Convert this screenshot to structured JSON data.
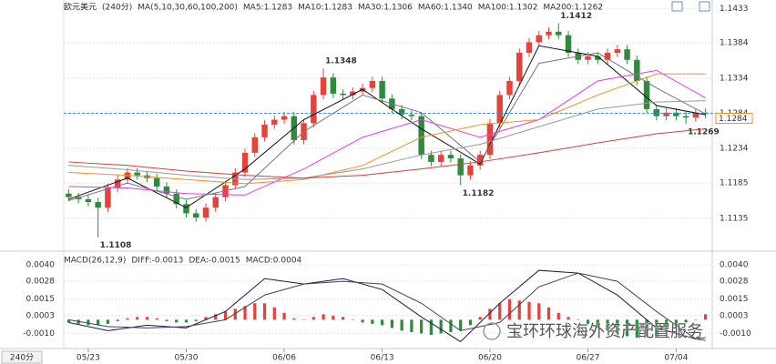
{
  "chart_data": [
    {
      "type": "candlestick",
      "title": "欧元美元",
      "subtitle": "(240分)",
      "indicator": "MA(5,10,30,60,100,200)",
      "xlim": [
        -0.5,
        65.5
      ],
      "ylim": [
        1.1096,
        1.1445
      ],
      "yticks": [
        1.1433,
        1.1384,
        1.1334,
        1.1284,
        1.1234,
        1.1185,
        1.1135
      ],
      "grid": true,
      "up_color": "#e8413a",
      "down_color": "#2e8b3d",
      "open": [
        1.117,
        1.1165,
        1.1162,
        1.1158,
        1.115,
        1.1178,
        1.119,
        1.12,
        1.1196,
        1.1192,
        1.118,
        1.117,
        1.1155,
        1.1142,
        1.1136,
        1.115,
        1.1165,
        1.1182,
        1.12,
        1.1228,
        1.125,
        1.1268,
        1.1275,
        1.128,
        1.1246,
        1.127,
        1.131,
        1.1335,
        1.1312,
        1.131,
        1.1315,
        1.132,
        1.133,
        1.1305,
        1.129,
        1.1282,
        1.128,
        1.1225,
        1.1215,
        1.1225,
        1.122,
        1.1196,
        1.121,
        1.1225,
        1.127,
        1.131,
        1.133,
        1.137,
        1.1385,
        1.1395,
        1.14,
        1.1395,
        1.137,
        1.136,
        1.1365,
        1.136,
        1.137,
        1.1375,
        1.136,
        1.133,
        1.129,
        1.128,
        1.1285,
        1.128,
        1.1278,
        1.1285
      ],
      "high": [
        1.1176,
        1.1171,
        1.1168,
        1.1164,
        1.1184,
        1.1196,
        1.1206,
        1.1206,
        1.1202,
        1.1198,
        1.1186,
        1.1176,
        1.1161,
        1.1148,
        1.1156,
        1.1171,
        1.1188,
        1.1206,
        1.1234,
        1.1256,
        1.1274,
        1.1281,
        1.1286,
        1.1286,
        1.1276,
        1.1316,
        1.1348,
        1.1341,
        1.1318,
        1.1321,
        1.1326,
        1.1336,
        1.1336,
        1.1311,
        1.1296,
        1.1288,
        1.1286,
        1.1231,
        1.1231,
        1.1231,
        1.1226,
        1.1216,
        1.1231,
        1.1276,
        1.1316,
        1.1336,
        1.1376,
        1.1391,
        1.1401,
        1.1406,
        1.1412,
        1.1401,
        1.1376,
        1.1371,
        1.1371,
        1.1376,
        1.1381,
        1.1381,
        1.1366,
        1.1336,
        1.1296,
        1.1291,
        1.1291,
        1.1286,
        1.1291,
        1.1291
      ],
      "low": [
        1.1159,
        1.1156,
        1.1152,
        1.1108,
        1.1144,
        1.1172,
        1.1184,
        1.119,
        1.1186,
        1.1174,
        1.1164,
        1.1149,
        1.1136,
        1.113,
        1.113,
        1.1144,
        1.1159,
        1.1176,
        1.1194,
        1.1222,
        1.1244,
        1.1262,
        1.1269,
        1.124,
        1.124,
        1.1264,
        1.1304,
        1.1306,
        1.1304,
        1.1304,
        1.1309,
        1.1314,
        1.1299,
        1.1284,
        1.1276,
        1.1274,
        1.1219,
        1.1209,
        1.1209,
        1.1214,
        1.1182,
        1.119,
        1.1204,
        1.1219,
        1.1264,
        1.1304,
        1.1324,
        1.1364,
        1.1379,
        1.1389,
        1.1389,
        1.1364,
        1.1354,
        1.1354,
        1.1354,
        1.1354,
        1.1364,
        1.1354,
        1.1324,
        1.1284,
        1.1274,
        1.1274,
        1.1274,
        1.1269,
        1.1272,
        1.1277
      ],
      "close": [
        1.1165,
        1.1162,
        1.1158,
        1.115,
        1.1178,
        1.119,
        1.12,
        1.1196,
        1.1192,
        1.118,
        1.117,
        1.1155,
        1.1142,
        1.1136,
        1.115,
        1.1165,
        1.1182,
        1.12,
        1.1228,
        1.125,
        1.1268,
        1.1275,
        1.128,
        1.1246,
        1.127,
        1.131,
        1.1335,
        1.1312,
        1.131,
        1.1315,
        1.132,
        1.133,
        1.1305,
        1.129,
        1.1282,
        1.128,
        1.1225,
        1.1215,
        1.1225,
        1.122,
        1.1196,
        1.121,
        1.1225,
        1.127,
        1.131,
        1.133,
        1.137,
        1.1385,
        1.1395,
        1.14,
        1.1395,
        1.137,
        1.136,
        1.1365,
        1.136,
        1.137,
        1.1375,
        1.136,
        1.133,
        1.129,
        1.128,
        1.1285,
        1.128,
        1.1278,
        1.1285,
        1.1283
      ],
      "series": [
        {
          "name": "MA5:1.1283",
          "color": "#111111",
          "x": [
            0,
            6,
            12,
            18,
            24,
            30,
            36,
            42,
            48,
            54,
            60,
            65
          ],
          "values": [
            1.1162,
            1.1192,
            1.115,
            1.1205,
            1.1275,
            1.1318,
            1.1262,
            1.1212,
            1.138,
            1.1365,
            1.1295,
            1.1282
          ]
        },
        {
          "name": "MA10:1.1283",
          "color": "#777777",
          "x": [
            0,
            6,
            12,
            18,
            24,
            30,
            36,
            42,
            48,
            54,
            60,
            65
          ],
          "values": [
            1.116,
            1.1185,
            1.1162,
            1.118,
            1.1258,
            1.131,
            1.1285,
            1.1215,
            1.1355,
            1.137,
            1.132,
            1.1283
          ]
        },
        {
          "name": "MA30:1.1306",
          "color": "#e040e0",
          "x": [
            0,
            6,
            12,
            18,
            24,
            30,
            36,
            42,
            48,
            54,
            60,
            65
          ],
          "values": [
            1.118,
            1.1178,
            1.117,
            1.1168,
            1.1205,
            1.125,
            1.1275,
            1.125,
            1.1275,
            1.133,
            1.1345,
            1.1306
          ]
        },
        {
          "name": "MA60:1.1340",
          "color": "#f0902a",
          "x": [
            0,
            6,
            12,
            18,
            24,
            30,
            36,
            42,
            48,
            54,
            60,
            65
          ],
          "values": [
            1.12,
            1.1196,
            1.119,
            1.1184,
            1.119,
            1.121,
            1.125,
            1.1268,
            1.1275,
            1.131,
            1.134,
            1.134
          ]
        },
        {
          "name": "MA100:1.1302",
          "color": "#999999",
          "x": [
            0,
            6,
            12,
            18,
            24,
            30,
            36,
            42,
            48,
            54,
            60,
            65
          ],
          "values": [
            1.121,
            1.1204,
            1.1196,
            1.119,
            1.1192,
            1.1205,
            1.1225,
            1.124,
            1.1265,
            1.129,
            1.13,
            1.1302
          ]
        },
        {
          "name": "MA200:1.1262",
          "color": "#d04040",
          "x": [
            0,
            6,
            12,
            18,
            24,
            30,
            36,
            42,
            48,
            54,
            60,
            65
          ],
          "values": [
            1.1215,
            1.121,
            1.1202,
            1.1196,
            1.1192,
            1.1196,
            1.1205,
            1.1215,
            1.1228,
            1.1242,
            1.1255,
            1.1262
          ]
        }
      ],
      "annotations": [
        {
          "x": 26,
          "value": 1.1348,
          "color": "#c0392b"
        },
        {
          "x": 50,
          "value": 1.1412,
          "color": "#c0392b"
        },
        {
          "x": 40,
          "value": 1.1182,
          "color": "#2e8b3d"
        },
        {
          "x": 3,
          "value": 1.1108,
          "color": "#2e8b3d"
        },
        {
          "x": 63,
          "value": 1.1269,
          "color": "#2e8b3d"
        }
      ],
      "last": 1.1284,
      "last_color": "#f0902a"
    },
    {
      "type": "macd",
      "title": "MACD(26,12,9)",
      "xlim": [
        -0.5,
        65.5
      ],
      "ylim": [
        -0.0021,
        0.0046
      ],
      "yticks": [
        {
          "value": 0.004,
          "label": "0.0040"
        },
        {
          "value": 0.0028,
          "label": "0.0028"
        },
        {
          "value": 0.0015,
          "label": "0.0015"
        },
        {
          "value": 0.0003,
          "label": "0.0003"
        },
        {
          "value": -0.001,
          "label": "-0.0010"
        }
      ],
      "xticks": [
        {
          "value": 2,
          "label": "05/23"
        },
        {
          "value": 12,
          "label": "05/30"
        },
        {
          "value": 22,
          "label": "06/06"
        },
        {
          "value": 32,
          "label": "06/13"
        },
        {
          "value": 43,
          "label": "06/20"
        },
        {
          "value": 53,
          "label": "06/27"
        },
        {
          "value": 62,
          "label": "07/04"
        }
      ],
      "series": [
        {
          "name": "DIFF:-0.0013",
          "color": "#1a1a5e",
          "x": [
            0,
            4,
            8,
            12,
            16,
            20,
            24,
            28,
            32,
            36,
            40,
            44,
            48,
            52,
            56,
            60,
            64,
            65
          ],
          "values": [
            -0.0002,
            -0.0008,
            -0.0004,
            -0.0006,
            0.0006,
            0.003,
            0.0026,
            0.003,
            0.0022,
            0.0002,
            -0.0016,
            0.0012,
            0.0036,
            0.0034,
            0.0018,
            -0.0006,
            -0.0014,
            -0.0013
          ]
        },
        {
          "name": "DEA:-0.0015",
          "color": "#444444",
          "x": [
            0,
            4,
            8,
            12,
            16,
            20,
            24,
            28,
            32,
            36,
            40,
            44,
            48,
            52,
            56,
            60,
            64,
            65
          ],
          "values": [
            0,
            -0.0005,
            -0.0006,
            -0.0005,
            0,
            0.0018,
            0.0026,
            0.0028,
            0.0026,
            0.0012,
            -0.0008,
            -0.0002,
            0.0024,
            0.0034,
            0.0028,
            0.0006,
            -0.0014,
            -0.0015
          ]
        }
      ],
      "histogram": {
        "name": "MACD:0.0004",
        "color": "#e040e0",
        "up_color": "#e8413a",
        "down_color": "#2e8b3d",
        "values": [
          -0.0002,
          -0.0003,
          -0.0004,
          -0.0004,
          -0.0003,
          -0.0001,
          0.0001,
          0.0002,
          0.0002,
          0.0001,
          -0.0001,
          -0.0002,
          -0.0002,
          -0.0001,
          0.0002,
          0.0004,
          0.0006,
          0.0008,
          0.001,
          0.0012,
          0.0012,
          0.0009,
          0.0005,
          0.0001,
          0,
          0.0002,
          0.0004,
          0.0003,
          0.0002,
          0,
          -0.0002,
          -0.0003,
          -0.0004,
          -0.0006,
          -0.0008,
          -0.0009,
          -0.001,
          -0.0011,
          -0.001,
          -0.0009,
          -0.0008,
          -0.0004,
          0.0002,
          0.0008,
          0.0012,
          0.0015,
          0.0014,
          0.0013,
          0.0012,
          0.0009,
          0.0005,
          0.0002,
          0,
          -0.0003,
          -0.0006,
          -0.0008,
          -0.001,
          -0.0012,
          -0.0013,
          -0.0012,
          -0.0012,
          -0.0009,
          -0.0005,
          -0.0002,
          0,
          0.0004
        ]
      }
    }
  ],
  "period_button": "240分",
  "watermark": "宝环环球海外资产配置服务"
}
